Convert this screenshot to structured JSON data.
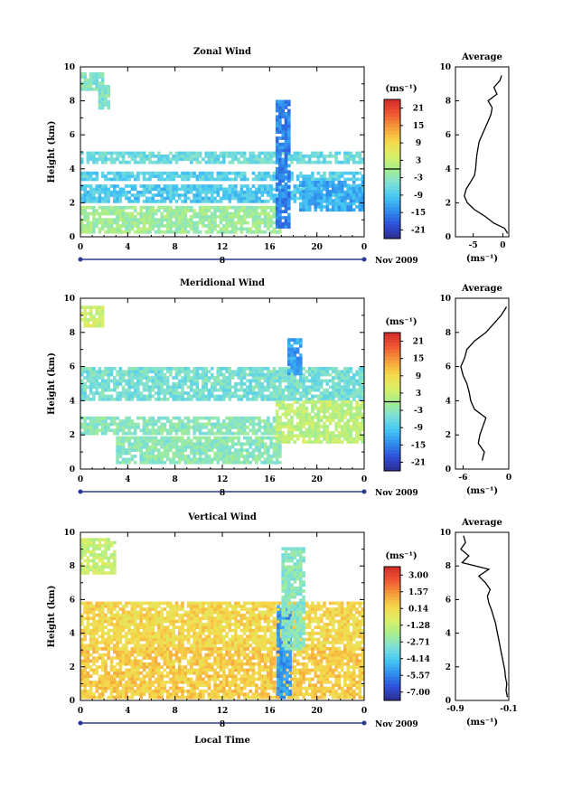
{
  "figure": {
    "xlabel": "Local Time",
    "date_label": "Nov 2009",
    "day_label": "8"
  },
  "chart_data": [
    {
      "type": "heatmap",
      "title": "Zonal Wind",
      "ylabel": "Height (km)",
      "xlabel": "Local Time",
      "x_ticks": [
        "0",
        "4",
        "8",
        "12",
        "16",
        "20",
        "0"
      ],
      "xlim": [
        0,
        24
      ],
      "y_ticks": [
        "0",
        "2",
        "4",
        "6",
        "8",
        "10"
      ],
      "ylim": [
        0,
        10
      ],
      "colorbar_unit": "(ms⁻¹)",
      "colorbar_ticks": [
        "21",
        "15",
        "9",
        "3",
        "-3",
        "-9",
        "-15",
        "-21"
      ],
      "colorbar_range": [
        -24,
        24
      ],
      "regions": [
        {
          "t0": 0,
          "t1": 2,
          "h0": 8.6,
          "h1": 9.5,
          "v": -4
        },
        {
          "t0": 1.5,
          "t1": 2.5,
          "h0": 7.5,
          "h1": 8.8,
          "v": -4
        },
        {
          "t0": 0,
          "t1": 24,
          "h0": 4.3,
          "h1": 4.9,
          "v": -6
        },
        {
          "t0": 0,
          "t1": 24,
          "h0": 3.3,
          "h1": 3.8,
          "v": -8
        },
        {
          "t0": 0,
          "t1": 24,
          "h0": 2.0,
          "h1": 3.0,
          "v": -9
        },
        {
          "t0": 0,
          "t1": 17,
          "h0": 0.2,
          "h1": 1.8,
          "v": -1
        },
        {
          "t0": 16.5,
          "t1": 17.6,
          "h0": 0.5,
          "h1": 8.0,
          "v": -15
        },
        {
          "t0": 18.5,
          "t1": 24,
          "h0": 1.5,
          "h1": 3.3,
          "v": -12
        }
      ],
      "average_profile": {
        "title": "Average",
        "xlabel": "(ms⁻¹)",
        "x_ticks": [
          "-5",
          "0"
        ],
        "xlim": [
          -8,
          1
        ],
        "y_ticks": [
          "0",
          "2",
          "4",
          "6",
          "8",
          "10"
        ],
        "height": [
          0.2,
          0.5,
          0.8,
          1.2,
          1.6,
          2.0,
          2.4,
          2.8,
          3.2,
          3.6,
          4.0,
          4.4,
          4.8,
          5.2,
          5.6,
          6.0,
          6.4,
          6.8,
          7.2,
          7.6,
          8.0,
          8.4,
          8.8,
          9.2,
          9.5
        ],
        "value": [
          0.8,
          0.3,
          -1.5,
          -3.0,
          -4.8,
          -6.0,
          -6.5,
          -6.2,
          -5.5,
          -4.8,
          -4.6,
          -4.5,
          -4.4,
          -4.2,
          -4.0,
          -3.5,
          -3.0,
          -2.5,
          -2.0,
          -1.8,
          -2.5,
          -1.0,
          -1.5,
          -0.5,
          -0.2
        ]
      }
    },
    {
      "type": "heatmap",
      "title": "Meridional Wind",
      "ylabel": "Height (km)",
      "xlabel": "Local Time",
      "x_ticks": [
        "0",
        "4",
        "8",
        "12",
        "16",
        "20",
        "0"
      ],
      "xlim": [
        0,
        24
      ],
      "y_ticks": [
        "0",
        "2",
        "4",
        "6",
        "8",
        "10"
      ],
      "ylim": [
        0,
        10
      ],
      "colorbar_unit": "(ms⁻¹)",
      "colorbar_ticks": [
        "21",
        "15",
        "9",
        "3",
        "-3",
        "-9",
        "-15",
        "-21"
      ],
      "colorbar_range": [
        -24,
        24
      ],
      "regions": [
        {
          "t0": 0,
          "t1": 2,
          "h0": 8.3,
          "h1": 9.5,
          "v": 4
        },
        {
          "t0": 0,
          "t1": 24,
          "h0": 4.0,
          "h1": 5.8,
          "v": -5
        },
        {
          "t0": 0,
          "t1": 17,
          "h0": 2.0,
          "h1": 3.0,
          "v": -3
        },
        {
          "t0": 3,
          "t1": 17,
          "h0": 0.3,
          "h1": 1.8,
          "v": -3
        },
        {
          "t0": 17.5,
          "t1": 18.6,
          "h0": 5.5,
          "h1": 7.5,
          "v": -13
        },
        {
          "t0": 16.5,
          "t1": 24,
          "h0": 1.5,
          "h1": 4.0,
          "v": 2
        }
      ],
      "average_profile": {
        "title": "Average",
        "xlabel": "(ms⁻¹)",
        "x_ticks": [
          "-6",
          "0"
        ],
        "xlim": [
          -7,
          0
        ],
        "y_ticks": [
          "0",
          "2",
          "4",
          "6",
          "8",
          "10"
        ],
        "height": [
          0.5,
          1.0,
          1.5,
          2.0,
          2.5,
          3.0,
          3.5,
          4.0,
          4.5,
          5.0,
          5.5,
          6.0,
          6.5,
          7.0,
          7.5,
          8.0,
          8.5,
          9.0,
          9.5
        ],
        "value": [
          -3.5,
          -3.2,
          -4.0,
          -3.8,
          -3.4,
          -3.0,
          -4.5,
          -5.0,
          -5.2,
          -5.5,
          -6.0,
          -6.3,
          -5.8,
          -5.5,
          -4.5,
          -3.0,
          -2.0,
          -1.0,
          -0.3
        ]
      }
    },
    {
      "type": "heatmap",
      "title": "Vertical Wind",
      "ylabel": "Height (km)",
      "xlabel": "Local Time",
      "x_ticks": [
        "0",
        "4",
        "8",
        "12",
        "16",
        "20",
        "0"
      ],
      "xlim": [
        0,
        24
      ],
      "y_ticks": [
        "0",
        "2",
        "4",
        "6",
        "8",
        "10"
      ],
      "ylim": [
        0,
        10
      ],
      "colorbar_unit": "(ms⁻¹)",
      "colorbar_ticks": [
        "3.00",
        "1.57",
        "0.14",
        "-1.28",
        "-2.71",
        "-4.14",
        "-5.57",
        "-7.00"
      ],
      "colorbar_range": [
        -8,
        3.6
      ],
      "regions": [
        {
          "t0": 0,
          "t1": 3,
          "h0": 7.5,
          "h1": 9.5,
          "v": -1.5
        },
        {
          "t0": 0,
          "t1": 24,
          "h0": 3.0,
          "h1": 5.7,
          "v": 0.0
        },
        {
          "t0": 0,
          "t1": 24,
          "h0": 0.1,
          "h1": 3.0,
          "v": 0.3
        },
        {
          "t0": 16.6,
          "t1": 17.7,
          "h0": 0.1,
          "h1": 5.5,
          "v": -5.5
        },
        {
          "t0": 17.0,
          "t1": 18.8,
          "h0": 3.0,
          "h1": 9.0,
          "v": -3.0
        }
      ],
      "average_profile": {
        "title": "Average",
        "xlabel": "(ms⁻¹)",
        "x_ticks": [
          "-0.9",
          "-0.1"
        ],
        "xlim": [
          -0.9,
          -0.1
        ],
        "y_ticks": [
          "0",
          "2",
          "4",
          "6",
          "8",
          "10"
        ],
        "height": [
          0.2,
          0.6,
          1.0,
          1.4,
          1.8,
          2.2,
          2.6,
          3.0,
          3.4,
          3.8,
          4.2,
          4.6,
          5.0,
          5.4,
          5.8,
          6.2,
          6.6,
          7.0,
          7.4,
          7.8,
          8.2,
          8.6,
          9.0,
          9.4,
          9.8
        ],
        "value": [
          -0.12,
          -0.14,
          -0.13,
          -0.15,
          -0.16,
          -0.18,
          -0.2,
          -0.22,
          -0.24,
          -0.26,
          -0.28,
          -0.3,
          -0.33,
          -0.36,
          -0.4,
          -0.42,
          -0.38,
          -0.45,
          -0.55,
          -0.4,
          -0.8,
          -0.7,
          -0.82,
          -0.75,
          -0.78
        ]
      }
    }
  ]
}
